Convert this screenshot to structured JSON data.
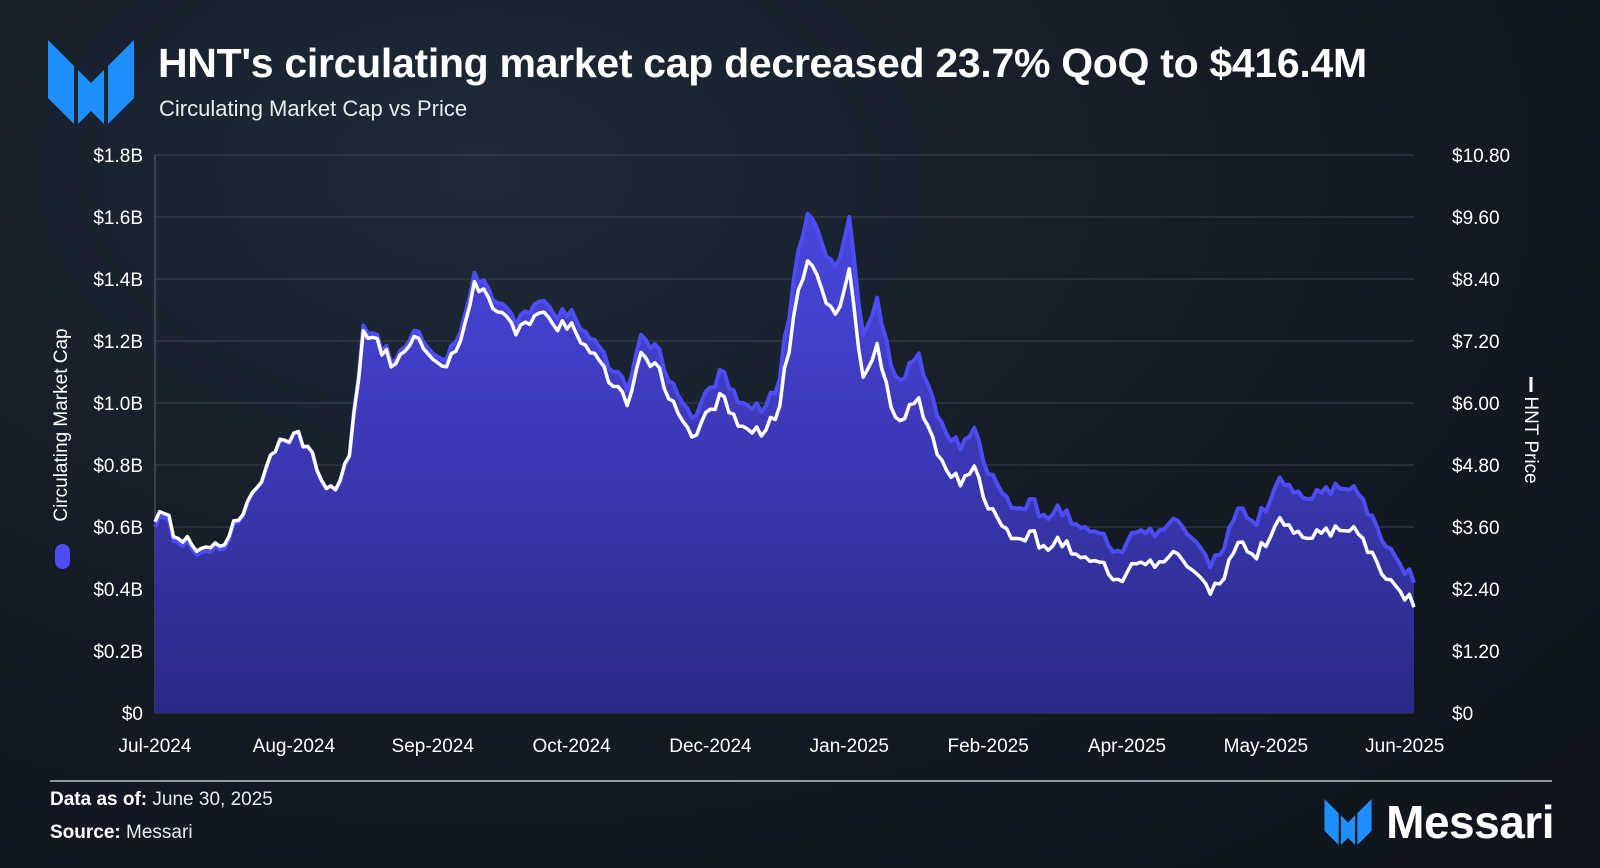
{
  "header": {
    "title": "HNT's circulating market cap decreased 23.7% QoQ to $416.4M",
    "subtitle": "Circulating Market Cap vs Price",
    "logo_icon": "messari-m-icon"
  },
  "footer": {
    "data_as_of_label": "Data as of:",
    "data_as_of_value": "June 30, 2025",
    "source_label": "Source:",
    "source_value": "Messari",
    "brand_name": "Messari"
  },
  "colors": {
    "area_line": "#4d4df5",
    "area_fill_top": "#4a46e0",
    "area_fill_bottom": "#2a2a86",
    "price_line": "#ffffff",
    "grid": "#3a4350",
    "brand_blue": "#1f8fff"
  },
  "chart_data": {
    "type": "area",
    "title": "Circulating Market Cap vs Price",
    "x_tick_labels": [
      "Jul-2024",
      "Aug-2024",
      "Sep-2024",
      "Oct-2024",
      "Dec-2024",
      "Jan-2025",
      "Feb-2025",
      "Apr-2025",
      "May-2025",
      "Jun-2025"
    ],
    "x_tick_positions": [
      0,
      30,
      60,
      90,
      120,
      150,
      180,
      210,
      240,
      270
    ],
    "x_range": [
      0,
      272
    ],
    "left_axis": {
      "label": "Circulating Market Cap",
      "range": [
        0,
        1.8
      ],
      "ticks": [
        0,
        0.2,
        0.4,
        0.6,
        0.8,
        1.0,
        1.2,
        1.4,
        1.6,
        1.8
      ],
      "tick_labels": [
        "$0",
        "$0.2B",
        "$0.4B",
        "$0.6B",
        "$0.8B",
        "$1.0B",
        "$1.2B",
        "$1.4B",
        "$1.6B",
        "$1.8B"
      ]
    },
    "right_axis": {
      "label": "HNT Price",
      "range": [
        0,
        10.8
      ],
      "ticks": [
        0,
        1.2,
        2.4,
        3.6,
        4.8,
        6.0,
        7.2,
        8.4,
        9.6,
        10.8
      ],
      "tick_labels": [
        "$0",
        "$1.20",
        "$2.40",
        "$3.60",
        "$4.80",
        "$6.00",
        "$7.20",
        "$8.40",
        "$9.60",
        "$10.80"
      ]
    },
    "series": [
      {
        "name": "Circulating Market Cap",
        "axis": "left",
        "unit": "$B",
        "keypoints": [
          [
            0,
            0.6
          ],
          [
            2,
            0.63
          ],
          [
            5,
            0.55
          ],
          [
            8,
            0.53
          ],
          [
            12,
            0.52
          ],
          [
            16,
            0.56
          ],
          [
            20,
            0.68
          ],
          [
            24,
            0.79
          ],
          [
            27,
            0.88
          ],
          [
            30,
            0.9
          ],
          [
            33,
            0.86
          ],
          [
            36,
            0.75
          ],
          [
            39,
            0.72
          ],
          [
            42,
            0.83
          ],
          [
            45,
            1.25
          ],
          [
            48,
            1.22
          ],
          [
            51,
            1.13
          ],
          [
            54,
            1.18
          ],
          [
            57,
            1.23
          ],
          [
            60,
            1.16
          ],
          [
            63,
            1.14
          ],
          [
            66,
            1.23
          ],
          [
            69,
            1.42
          ],
          [
            72,
            1.37
          ],
          [
            75,
            1.32
          ],
          [
            78,
            1.25
          ],
          [
            81,
            1.29
          ],
          [
            84,
            1.33
          ],
          [
            87,
            1.27
          ],
          [
            90,
            1.3
          ],
          [
            93,
            1.23
          ],
          [
            96,
            1.18
          ],
          [
            99,
            1.1
          ],
          [
            102,
            1.04
          ],
          [
            105,
            1.22
          ],
          [
            108,
            1.19
          ],
          [
            111,
            1.07
          ],
          [
            114,
            1.0
          ],
          [
            117,
            0.96
          ],
          [
            120,
            1.05
          ],
          [
            123,
            1.1
          ],
          [
            126,
            1.0
          ],
          [
            129,
            0.98
          ],
          [
            132,
            0.99
          ],
          [
            135,
            1.08
          ],
          [
            138,
            1.4
          ],
          [
            141,
            1.61
          ],
          [
            144,
            1.52
          ],
          [
            147,
            1.44
          ],
          [
            150,
            1.6
          ],
          [
            153,
            1.22
          ],
          [
            156,
            1.34
          ],
          [
            159,
            1.12
          ],
          [
            162,
            1.08
          ],
          [
            165,
            1.16
          ],
          [
            168,
            1.02
          ],
          [
            171,
            0.9
          ],
          [
            174,
            0.85
          ],
          [
            177,
            0.92
          ],
          [
            180,
            0.77
          ],
          [
            183,
            0.71
          ],
          [
            186,
            0.66
          ],
          [
            189,
            0.69
          ],
          [
            192,
            0.64
          ],
          [
            195,
            0.67
          ],
          [
            198,
            0.61
          ],
          [
            201,
            0.6
          ],
          [
            204,
            0.58
          ],
          [
            207,
            0.52
          ],
          [
            210,
            0.55
          ],
          [
            213,
            0.59
          ],
          [
            216,
            0.57
          ],
          [
            219,
            0.61
          ],
          [
            222,
            0.6
          ],
          [
            225,
            0.55
          ],
          [
            228,
            0.47
          ],
          [
            231,
            0.53
          ],
          [
            234,
            0.66
          ],
          [
            237,
            0.62
          ],
          [
            240,
            0.65
          ],
          [
            243,
            0.76
          ],
          [
            246,
            0.71
          ],
          [
            249,
            0.69
          ],
          [
            252,
            0.71
          ],
          [
            255,
            0.74
          ],
          [
            258,
            0.72
          ],
          [
            261,
            0.69
          ],
          [
            264,
            0.6
          ],
          [
            267,
            0.53
          ],
          [
            269,
            0.48
          ],
          [
            272,
            0.42
          ]
        ]
      },
      {
        "name": "HNT Price",
        "axis": "right",
        "unit": "$",
        "keypoints": [
          [
            0,
            3.7
          ],
          [
            2,
            3.86
          ],
          [
            5,
            3.38
          ],
          [
            8,
            3.25
          ],
          [
            12,
            3.2
          ],
          [
            16,
            3.42
          ],
          [
            20,
            4.1
          ],
          [
            24,
            4.75
          ],
          [
            27,
            5.3
          ],
          [
            30,
            5.42
          ],
          [
            33,
            5.16
          ],
          [
            36,
            4.5
          ],
          [
            39,
            4.32
          ],
          [
            42,
            4.98
          ],
          [
            45,
            7.4
          ],
          [
            48,
            7.25
          ],
          [
            51,
            6.7
          ],
          [
            54,
            7.0
          ],
          [
            57,
            7.25
          ],
          [
            60,
            6.85
          ],
          [
            63,
            6.7
          ],
          [
            66,
            7.2
          ],
          [
            69,
            8.35
          ],
          [
            72,
            8.05
          ],
          [
            75,
            7.75
          ],
          [
            78,
            7.32
          ],
          [
            81,
            7.52
          ],
          [
            84,
            7.76
          ],
          [
            87,
            7.4
          ],
          [
            90,
            7.55
          ],
          [
            93,
            7.12
          ],
          [
            96,
            6.82
          ],
          [
            99,
            6.32
          ],
          [
            102,
            5.95
          ],
          [
            105,
            6.98
          ],
          [
            108,
            6.78
          ],
          [
            111,
            6.08
          ],
          [
            114,
            5.65
          ],
          [
            117,
            5.38
          ],
          [
            120,
            5.88
          ],
          [
            123,
            6.12
          ],
          [
            126,
            5.55
          ],
          [
            129,
            5.42
          ],
          [
            132,
            5.48
          ],
          [
            135,
            5.95
          ],
          [
            138,
            7.7
          ],
          [
            141,
            8.75
          ],
          [
            144,
            8.22
          ],
          [
            147,
            7.72
          ],
          [
            150,
            8.6
          ],
          [
            153,
            6.5
          ],
          [
            156,
            7.15
          ],
          [
            159,
            5.92
          ],
          [
            162,
            5.7
          ],
          [
            165,
            6.1
          ],
          [
            168,
            5.35
          ],
          [
            171,
            4.7
          ],
          [
            174,
            4.4
          ],
          [
            177,
            4.78
          ],
          [
            180,
            3.95
          ],
          [
            183,
            3.62
          ],
          [
            186,
            3.38
          ],
          [
            189,
            3.52
          ],
          [
            192,
            3.24
          ],
          [
            195,
            3.4
          ],
          [
            198,
            3.08
          ],
          [
            201,
            3.02
          ],
          [
            204,
            2.92
          ],
          [
            207,
            2.58
          ],
          [
            210,
            2.72
          ],
          [
            213,
            2.92
          ],
          [
            216,
            2.82
          ],
          [
            219,
            3.02
          ],
          [
            222,
            2.96
          ],
          [
            225,
            2.7
          ],
          [
            228,
            2.3
          ],
          [
            231,
            2.6
          ],
          [
            234,
            3.3
          ],
          [
            237,
            3.08
          ],
          [
            240,
            3.22
          ],
          [
            243,
            3.78
          ],
          [
            246,
            3.48
          ],
          [
            249,
            3.38
          ],
          [
            252,
            3.48
          ],
          [
            255,
            3.62
          ],
          [
            258,
            3.52
          ],
          [
            261,
            3.38
          ],
          [
            264,
            2.92
          ],
          [
            267,
            2.58
          ],
          [
            269,
            2.36
          ],
          [
            272,
            2.05
          ]
        ]
      }
    ],
    "legend": "rotated labels on both side axes",
    "grid": true
  }
}
